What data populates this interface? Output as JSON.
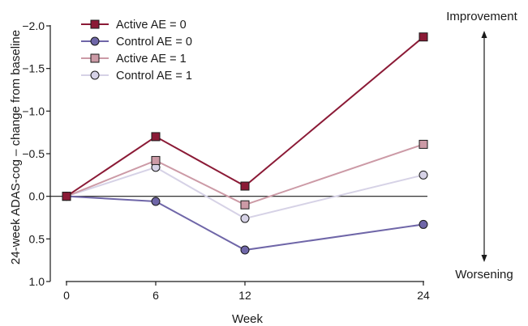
{
  "chart_data": {
    "type": "line",
    "xlabel": "Week",
    "ylabel": "24-week ADAS-cog – change from baseline",
    "x": [
      0,
      6,
      12,
      24
    ],
    "x_ticks": [
      "0",
      "6",
      "12",
      "24"
    ],
    "ylim": [
      1.0,
      -2.0
    ],
    "y_inverted": true,
    "y_ticks": [
      "−2.0",
      "−1.5",
      "−1.0",
      "−0.5",
      "0.0",
      "0.5",
      "1.0"
    ],
    "y_tick_values": [
      -2.0,
      -1.5,
      -1.0,
      -0.5,
      0.0,
      0.5,
      1.0
    ],
    "reference_line": 0.0,
    "grid": false,
    "legend_position": "top-left",
    "series": [
      {
        "name": "Active AE = 0",
        "values": [
          0.0,
          -0.7,
          -0.12,
          -1.87
        ],
        "color": "#8b1a36",
        "marker": "square"
      },
      {
        "name": "Control AE = 0",
        "values": [
          0.0,
          0.06,
          0.63,
          0.33
        ],
        "color": "#6f66a8",
        "marker": "circle"
      },
      {
        "name": "Active AE = 1",
        "values": [
          0.0,
          -0.42,
          0.1,
          -0.61
        ],
        "color": "#cc9aa6",
        "marker": "square"
      },
      {
        "name": "Control AE = 1",
        "values": [
          0.0,
          -0.34,
          0.26,
          -0.25
        ],
        "color": "#d6d2e6",
        "marker": "circle"
      }
    ],
    "annotations": {
      "top": "Improvement",
      "bottom": "Worsening"
    }
  }
}
